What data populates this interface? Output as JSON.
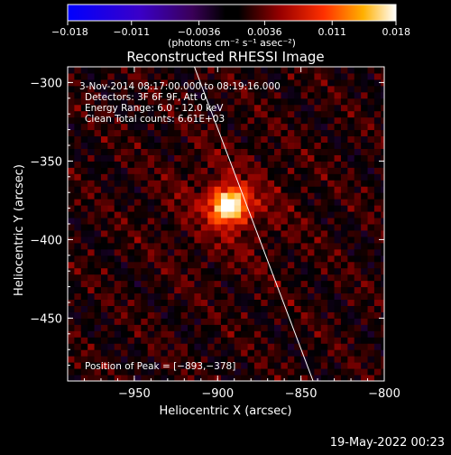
{
  "chart_data": {
    "type": "heatmap",
    "title": "Reconstructed RHESSI Image",
    "xlabel": "Heliocentric X (arcsec)",
    "ylabel": "Heliocentric Y (arcsec)",
    "xlim": [
      -990,
      -800
    ],
    "ylim": [
      -490,
      -290
    ],
    "x_ticks": [
      -950,
      -900,
      -850,
      -800
    ],
    "x_tick_labels": [
      "−950",
      "−900",
      "−850",
      "−800"
    ],
    "y_ticks": [
      -300,
      -350,
      -400,
      -450
    ],
    "y_tick_labels": [
      "−300",
      "−350",
      "−400",
      "−450"
    ],
    "colorbar": {
      "range": [
        -0.018,
        0.018
      ],
      "ticks": [
        -0.018,
        -0.011,
        -0.0036,
        0.0036,
        0.011,
        0.018
      ],
      "tick_labels": [
        "−0.018",
        "−0.011",
        "−0.0036",
        "0.0036",
        "0.011",
        "0.018"
      ],
      "units": "(photons cm⁻² s⁻¹ asec⁻²)",
      "colormap": "RHESSI red-temperature (blue-purple-black-red-orange-yellow-white)"
    },
    "annotations": [
      "3-Nov-2014 08:17:00.000 to 08:19:16.000",
      "Detectors: 3F 6F 9F, Att 0",
      "Energy Range: 6.0 - 12.0 keV",
      "Clean     Total counts: 6.61E+03"
    ],
    "peak_label": "Position of Peak = [−893,−378]",
    "peak": {
      "x": -893,
      "y": -378
    },
    "limb_line": [
      {
        "x": -915,
        "y": -287
      },
      {
        "x": -842,
        "y": -492
      }
    ],
    "colors": {
      "background": "#000000",
      "frame": "#ffffff",
      "limb": "#ffffff"
    }
  },
  "footer": {
    "timestamp": "19-May-2022 00:23"
  }
}
